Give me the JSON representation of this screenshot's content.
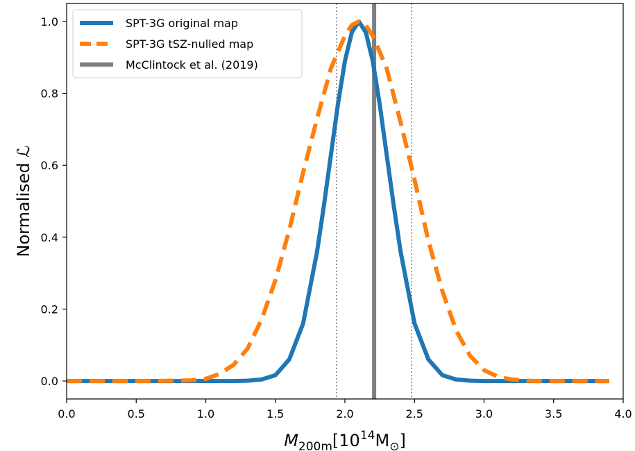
{
  "chart_data": {
    "type": "line",
    "xlabel_main": "M",
    "xlabel_sub": "200m",
    "xlabel_unit_open": "[10",
    "xlabel_unit_exp": "14",
    "xlabel_unit_tail": "M",
    "xlabel_unit_sub": "⊙",
    "xlabel_unit_close": "]",
    "ylabel": "Normalised ℒ",
    "xlim": [
      0.0,
      4.0
    ],
    "ylim": [
      -0.05,
      1.05
    ],
    "x_ticks": [
      0.0,
      0.5,
      1.0,
      1.5,
      2.0,
      2.5,
      3.0,
      3.5,
      4.0
    ],
    "x_tick_labels": [
      "0.0",
      "0.5",
      "1.0",
      "1.5",
      "2.0",
      "2.5",
      "3.0",
      "3.5",
      "4.0"
    ],
    "y_ticks": [
      0.0,
      0.2,
      0.4,
      0.6,
      0.8,
      1.0
    ],
    "y_tick_labels": [
      "0.0",
      "0.2",
      "0.4",
      "0.6",
      "0.8",
      "1.0"
    ],
    "grid": false,
    "legend_position": "upper-left",
    "series": [
      {
        "name": "SPT-3G original map",
        "color": "#1f77b4",
        "style": "solid",
        "x": [
          0.0,
          0.2,
          0.4,
          0.6,
          0.8,
          1.0,
          1.1,
          1.2,
          1.3,
          1.4,
          1.5,
          1.6,
          1.7,
          1.8,
          1.85,
          1.9,
          1.95,
          2.0,
          2.05,
          2.1,
          2.15,
          2.2,
          2.25,
          2.3,
          2.35,
          2.4,
          2.5,
          2.6,
          2.7,
          2.8,
          2.9,
          3.0,
          3.2,
          3.4,
          3.6,
          3.8,
          3.9
        ],
        "y": [
          0.0,
          0.0,
          0.0,
          0.0,
          0.0,
          0.0,
          0.0,
          0.0,
          0.001,
          0.004,
          0.016,
          0.06,
          0.16,
          0.36,
          0.49,
          0.63,
          0.77,
          0.89,
          0.97,
          1.0,
          0.97,
          0.89,
          0.77,
          0.63,
          0.49,
          0.36,
          0.16,
          0.06,
          0.016,
          0.004,
          0.001,
          0.0,
          0.0,
          0.0,
          0.0,
          0.0,
          0.0
        ]
      },
      {
        "name": "SPT-3G tSZ-nulled map",
        "color": "#ff7f0e",
        "style": "dashed",
        "x": [
          0.0,
          0.2,
          0.4,
          0.6,
          0.8,
          0.9,
          1.0,
          1.1,
          1.2,
          1.3,
          1.4,
          1.5,
          1.6,
          1.7,
          1.8,
          1.9,
          2.0,
          2.05,
          2.1,
          2.15,
          2.2,
          2.3,
          2.4,
          2.5,
          2.6,
          2.7,
          2.8,
          2.9,
          3.0,
          3.1,
          3.2,
          3.3,
          3.4,
          3.6,
          3.8,
          3.9
        ],
        "y": [
          0.0,
          0.0,
          0.0,
          0.0,
          0.001,
          0.002,
          0.006,
          0.02,
          0.045,
          0.09,
          0.17,
          0.28,
          0.42,
          0.58,
          0.73,
          0.87,
          0.96,
          0.99,
          1.0,
          0.99,
          0.96,
          0.87,
          0.72,
          0.56,
          0.39,
          0.25,
          0.14,
          0.07,
          0.03,
          0.012,
          0.004,
          0.001,
          0.0,
          0.0,
          0.0,
          0.0
        ]
      }
    ],
    "reference_lines": [
      {
        "name": "McClintock et al. (2019)",
        "x": 2.21,
        "color": "#7f7f7f",
        "style": "solid"
      },
      {
        "x": 1.94,
        "color": "#7f7f7f",
        "style": "dotted"
      },
      {
        "x": 2.48,
        "color": "#7f7f7f",
        "style": "dotted"
      }
    ]
  }
}
